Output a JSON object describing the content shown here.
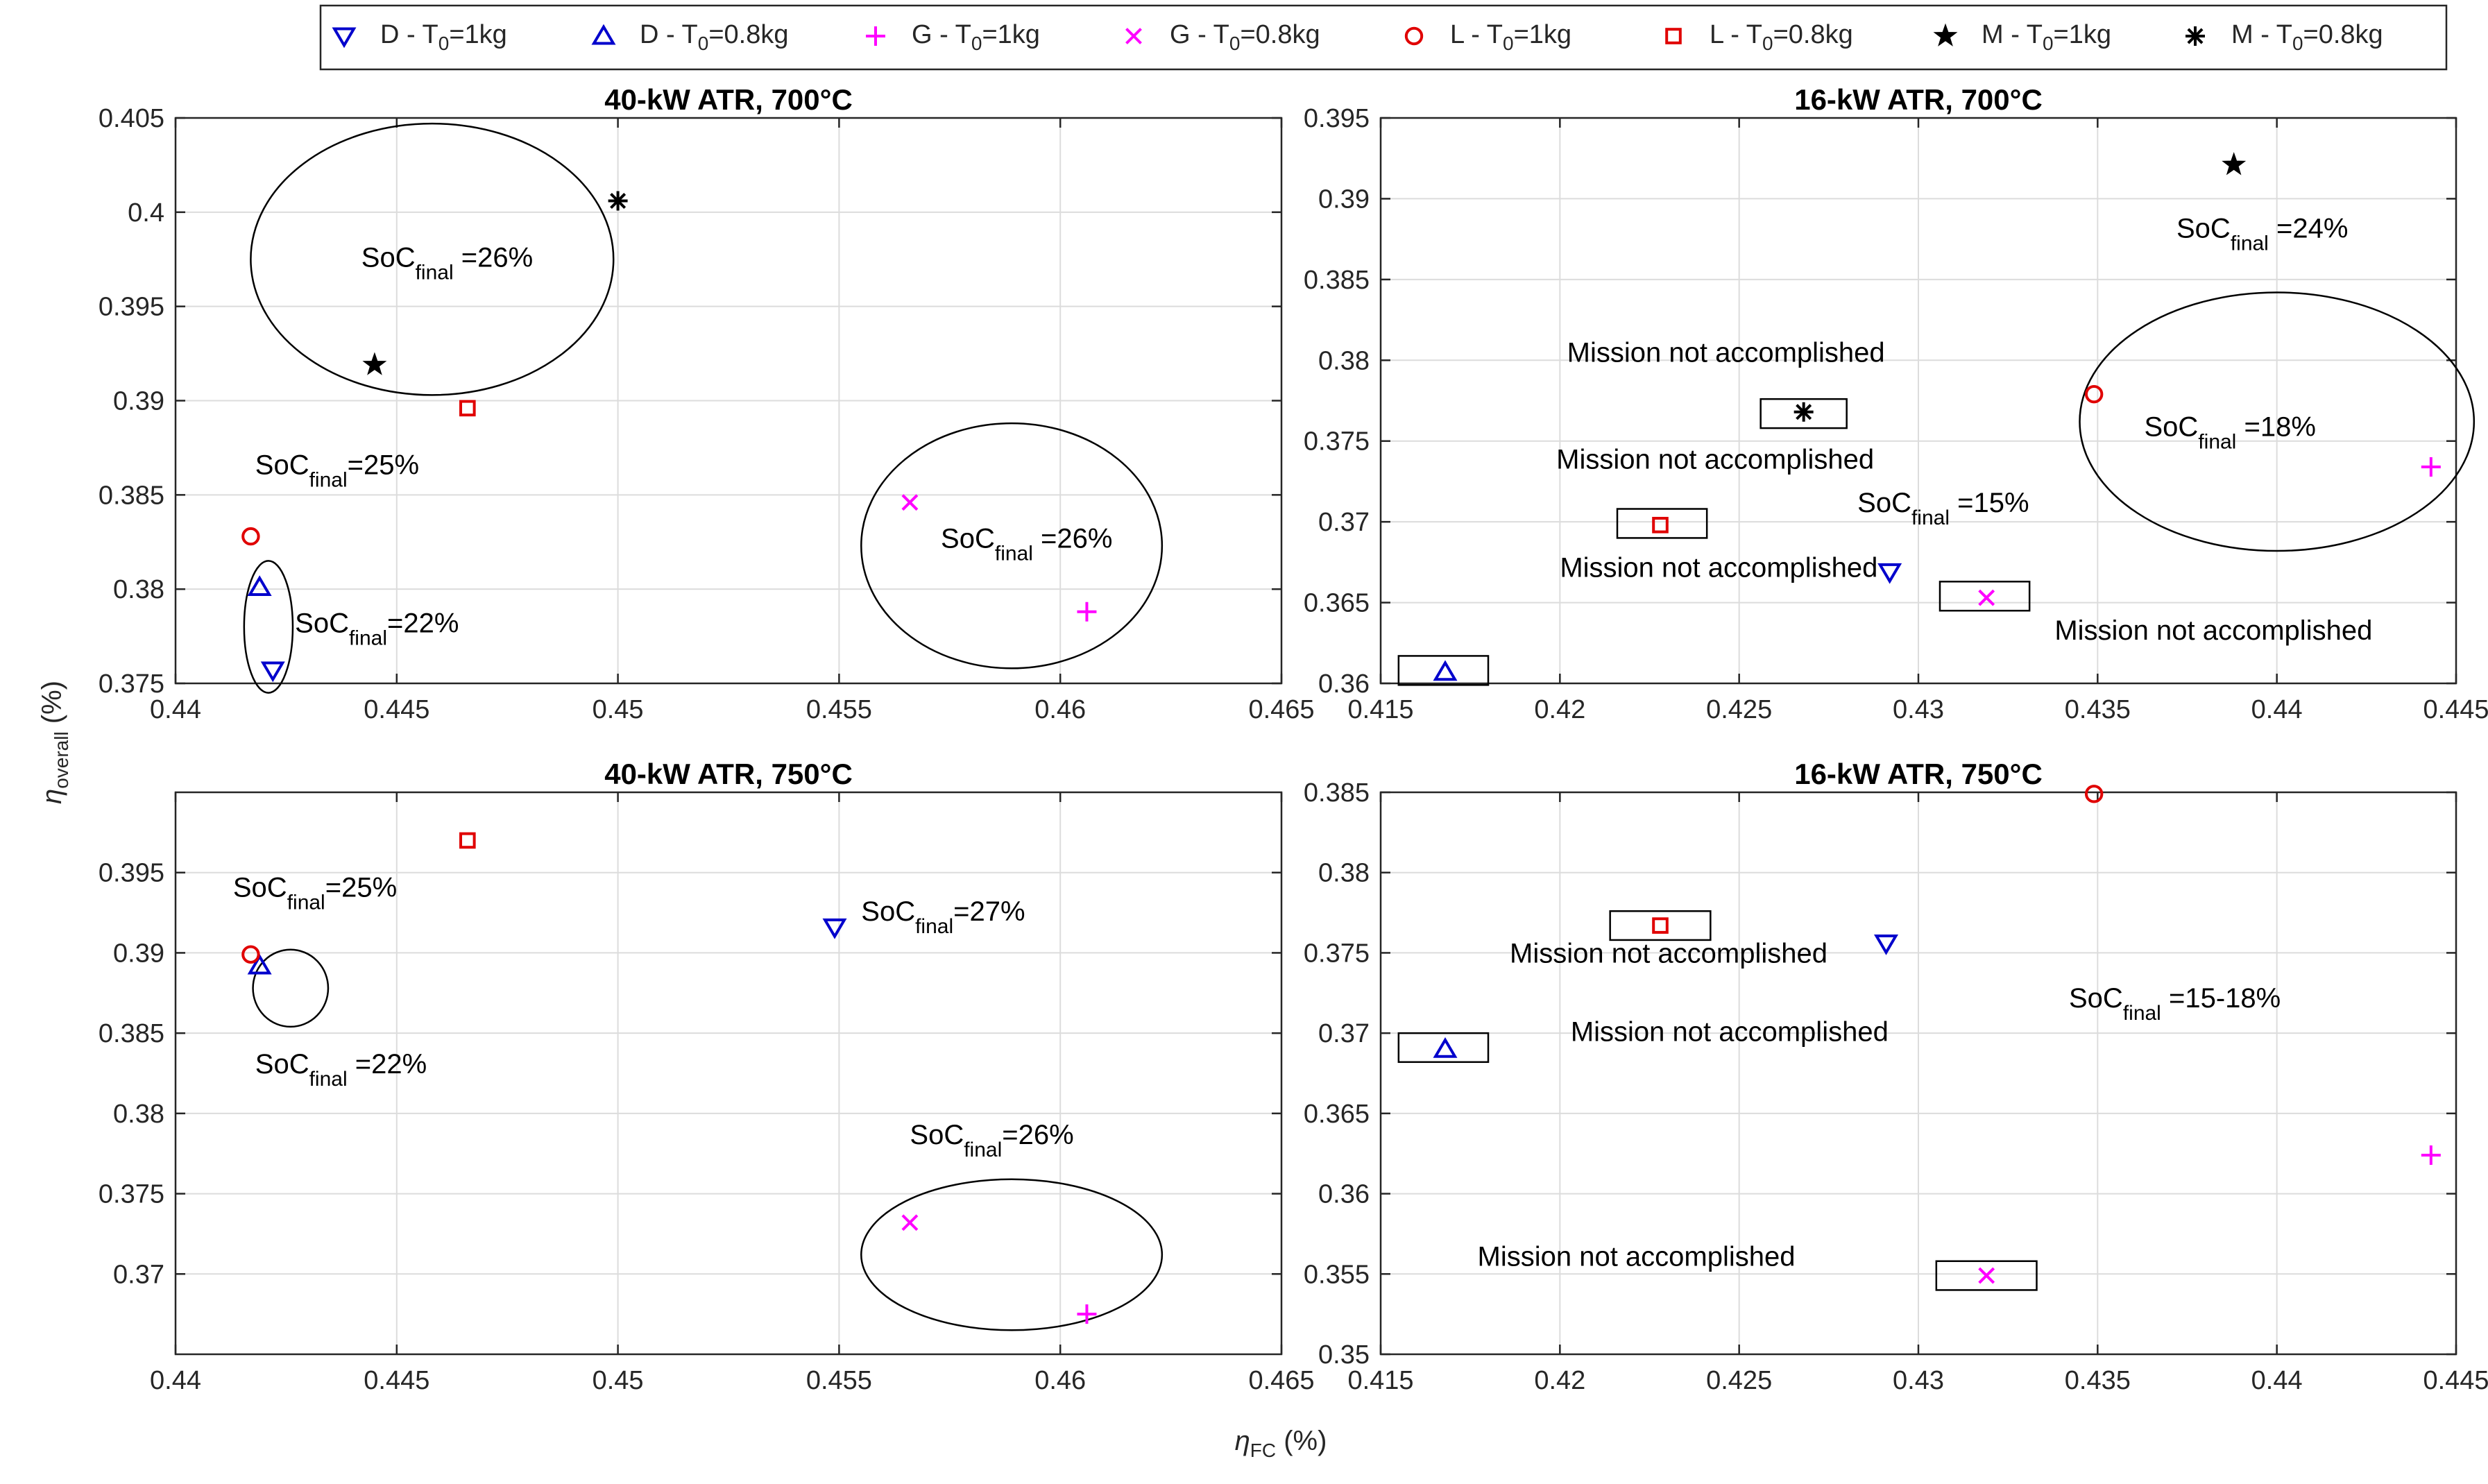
{
  "figure": {
    "xlabel": "η",
    "xlabel_sub": "FC",
    "xlabel_unit": " (%)",
    "ylabel": "η",
    "ylabel_sub": "overall",
    "ylabel_unit": " (%)"
  },
  "legend": [
    {
      "key": "D1",
      "marker": "triangle-down",
      "color": "#0000cc",
      "label": "D - T",
      "sub": "0",
      "suffix": "=1kg"
    },
    {
      "key": "D08",
      "marker": "triangle-up",
      "color": "#0000cc",
      "label": "D - T",
      "sub": "0",
      "suffix": "=0.8kg"
    },
    {
      "key": "G1",
      "marker": "plus",
      "color": "#ff00ff",
      "label": "G - T",
      "sub": "0",
      "suffix": "=1kg"
    },
    {
      "key": "G08",
      "marker": "x",
      "color": "#ff00ff",
      "label": "G - T",
      "sub": "0",
      "suffix": "=0.8kg"
    },
    {
      "key": "L1",
      "marker": "circle",
      "color": "#e00000",
      "label": "L - T",
      "sub": "0",
      "suffix": "=1kg"
    },
    {
      "key": "L08",
      "marker": "square",
      "color": "#e00000",
      "label": "L - T",
      "sub": "0",
      "suffix": "=0.8kg"
    },
    {
      "key": "M1",
      "marker": "pentagram",
      "color": "#000000",
      "label": "M - T",
      "sub": "0",
      "suffix": "=1kg"
    },
    {
      "key": "M08",
      "marker": "asterisk",
      "color": "#000000",
      "label": "M - T",
      "sub": "0",
      "suffix": "=0.8kg"
    }
  ],
  "chart_data": [
    {
      "type": "scatter",
      "title": "40-kW ATR, 700°C",
      "xlim": [
        0.44,
        0.465
      ],
      "ylim": [
        0.375,
        0.405
      ],
      "xticks": [
        "0.44",
        "0.445",
        "0.45",
        "0.455",
        "0.46",
        "0.465"
      ],
      "yticks": [
        "0.375",
        "0.38",
        "0.385",
        "0.39",
        "0.395",
        "0.4",
        "0.405"
      ],
      "xtickvals": [
        0.44,
        0.445,
        0.45,
        0.455,
        0.46,
        0.465
      ],
      "ytickvals": [
        0.375,
        0.38,
        0.385,
        0.39,
        0.395,
        0.4,
        0.405
      ],
      "points": [
        {
          "series": "D1",
          "x": 0.4422,
          "y": 0.3757
        },
        {
          "series": "D08",
          "x": 0.4419,
          "y": 0.3801
        },
        {
          "series": "G1",
          "x": 0.4606,
          "y": 0.3788
        },
        {
          "series": "G08",
          "x": 0.4566,
          "y": 0.3846
        },
        {
          "series": "L1",
          "x": 0.4417,
          "y": 0.3828
        },
        {
          "series": "L08",
          "x": 0.4466,
          "y": 0.3896
        },
        {
          "series": "M1",
          "x": 0.4445,
          "y": 0.3919
        },
        {
          "series": "M08",
          "x": 0.45,
          "y": 0.4006
        }
      ],
      "annotations": [
        {
          "pre": "SoC",
          "sub": "final",
          "post": " =26%",
          "x": 0.4442,
          "y": 0.3971
        },
        {
          "pre": "SoC",
          "sub": "final",
          "post": "=25%",
          "x": 0.4418,
          "y": 0.3861
        },
        {
          "pre": "SoC",
          "sub": "final",
          "post": " =26%",
          "x": 0.4573,
          "y": 0.3822
        },
        {
          "pre": "SoC",
          "sub": "final",
          "post": "=22%",
          "x": 0.4427,
          "y": 0.3777
        }
      ],
      "ellipses": [
        {
          "cx": 0.4458,
          "cy": 0.3975,
          "rx": 0.0041,
          "ry": 0.0072
        },
        {
          "cx": 0.4589,
          "cy": 0.3823,
          "rx": 0.0034,
          "ry": 0.0065
        },
        {
          "cx": 0.4421,
          "cy": 0.378,
          "rx": 0.00055,
          "ry": 0.0035
        }
      ],
      "boxes": []
    },
    {
      "type": "scatter",
      "title": "16-kW ATR, 700°C",
      "xlim": [
        0.415,
        0.445
      ],
      "ylim": [
        0.36,
        0.395
      ],
      "xticks": [
        "0.415",
        "0.42",
        "0.425",
        "0.43",
        "0.435",
        "0.44",
        "0.445"
      ],
      "yticks": [
        "0.36",
        "0.365",
        "0.37",
        "0.375",
        "0.38",
        "0.385",
        "0.39",
        "0.395"
      ],
      "xtickvals": [
        0.415,
        0.42,
        0.425,
        0.43,
        0.435,
        0.44,
        0.445
      ],
      "ytickvals": [
        0.36,
        0.365,
        0.37,
        0.375,
        0.38,
        0.385,
        0.39,
        0.395
      ],
      "points": [
        {
          "series": "D1",
          "x": 0.4292,
          "y": 0.3669
        },
        {
          "series": "D08",
          "x": 0.4168,
          "y": 0.3607
        },
        {
          "series": "G1",
          "x": 0.4443,
          "y": 0.3734
        },
        {
          "series": "G08",
          "x": 0.4319,
          "y": 0.3653
        },
        {
          "series": "L1",
          "x": 0.4349,
          "y": 0.3779
        },
        {
          "series": "L08",
          "x": 0.4228,
          "y": 0.3698
        },
        {
          "series": "M1",
          "x": 0.4388,
          "y": 0.3921
        },
        {
          "series": "M08",
          "x": 0.4268,
          "y": 0.3768
        }
      ],
      "annotations": [
        {
          "pre": "SoC",
          "sub": "final",
          "post": " =24%",
          "x": 0.4372,
          "y": 0.3876
        },
        {
          "pre": "SoC",
          "sub": "final",
          "post": " =18%",
          "x": 0.4363,
          "y": 0.3753
        },
        {
          "pre": "SoC",
          "sub": "final",
          "post": " =15%",
          "x": 0.4283,
          "y": 0.3706
        },
        {
          "text": "Mission not accomplished",
          "x": 0.4202,
          "y": 0.3799
        },
        {
          "text": "Mission not accomplished",
          "x": 0.4199,
          "y": 0.3733
        },
        {
          "text": "Mission not accomplished",
          "x": 0.42,
          "y": 0.3666
        },
        {
          "text": "Mission not accomplished",
          "x": 0.4338,
          "y": 0.3627
        }
      ],
      "ellipses": [
        {
          "cx": 0.44,
          "cy": 0.3762,
          "rx": 0.0055,
          "ry": 0.008
        }
      ],
      "boxes": [
        {
          "x0": 0.4256,
          "x1": 0.428,
          "y0": 0.3758,
          "y1": 0.3776
        },
        {
          "x0": 0.4216,
          "x1": 0.4241,
          "y0": 0.369,
          "y1": 0.3708
        },
        {
          "x0": 0.4306,
          "x1": 0.4331,
          "y0": 0.3645,
          "y1": 0.3663
        },
        {
          "x0": 0.4155,
          "x1": 0.418,
          "y0": 0.3599,
          "y1": 0.3617
        }
      ]
    },
    {
      "type": "scatter",
      "title": "40-kW ATR, 750°C",
      "xlim": [
        0.44,
        0.465
      ],
      "ylim": [
        0.365,
        0.4
      ],
      "xticks": [
        "0.44",
        "0.445",
        "0.45",
        "0.455",
        "0.46",
        "0.465"
      ],
      "yticks": [
        "0.37",
        "0.375",
        "0.38",
        "0.385",
        "0.39",
        "0.395"
      ],
      "xtickvals": [
        0.44,
        0.445,
        0.45,
        0.455,
        0.46,
        0.465
      ],
      "ytickvals": [
        0.37,
        0.375,
        0.38,
        0.385,
        0.39,
        0.395
      ],
      "points": [
        {
          "series": "D1",
          "x": 0.4549,
          "y": 0.3916
        },
        {
          "series": "D08",
          "x": 0.4419,
          "y": 0.3892
        },
        {
          "series": "G1",
          "x": 0.4606,
          "y": 0.3675
        },
        {
          "series": "G08",
          "x": 0.4566,
          "y": 0.3732
        },
        {
          "series": "L1",
          "x": 0.4417,
          "y": 0.3899
        },
        {
          "series": "L08",
          "x": 0.4466,
          "y": 0.397
        }
      ],
      "annotations": [
        {
          "pre": "SoC",
          "sub": "final",
          "post": "=25%",
          "x": 0.4413,
          "y": 0.3935
        },
        {
          "pre": "SoC",
          "sub": "final",
          "post": "=27%",
          "x": 0.4555,
          "y": 0.392
        },
        {
          "pre": "SoC",
          "sub": "final",
          "post": " =22%",
          "x": 0.4418,
          "y": 0.3825
        },
        {
          "pre": "SoC",
          "sub": "final",
          "post": "=26%",
          "x": 0.4566,
          "y": 0.3781
        }
      ],
      "ellipses": [
        {
          "cx": 0.4426,
          "cy": 0.3878,
          "rx": 0.00085,
          "ry": 0.0024
        },
        {
          "cx": 0.4589,
          "cy": 0.3712,
          "rx": 0.0034,
          "ry": 0.0047
        }
      ],
      "boxes": []
    },
    {
      "type": "scatter",
      "title": "16-kW ATR, 750°C",
      "xlim": [
        0.415,
        0.445
      ],
      "ylim": [
        0.35,
        0.385
      ],
      "xticks": [
        "0.415",
        "0.42",
        "0.425",
        "0.43",
        "0.435",
        "0.44",
        "0.445"
      ],
      "yticks": [
        "0.35",
        "0.355",
        "0.36",
        "0.365",
        "0.37",
        "0.375",
        "0.38",
        "0.385"
      ],
      "xtickvals": [
        0.415,
        0.42,
        0.425,
        0.43,
        0.435,
        0.44,
        0.445
      ],
      "ytickvals": [
        0.35,
        0.355,
        0.36,
        0.365,
        0.37,
        0.375,
        0.38,
        0.385
      ],
      "points": [
        {
          "series": "D1",
          "x": 0.4291,
          "y": 0.3756
        },
        {
          "series": "D08",
          "x": 0.4168,
          "y": 0.369
        },
        {
          "series": "G1",
          "x": 0.4443,
          "y": 0.3624
        },
        {
          "series": "G08",
          "x": 0.4319,
          "y": 0.3549
        },
        {
          "series": "L1",
          "x": 0.4349,
          "y": 0.3849
        },
        {
          "series": "L08",
          "x": 0.4228,
          "y": 0.3767
        }
      ],
      "annotations": [
        {
          "text": "Mission not accomplished",
          "x": 0.4186,
          "y": 0.3744
        },
        {
          "text": "Mission not accomplished",
          "x": 0.4203,
          "y": 0.3695
        },
        {
          "pre": "SoC",
          "sub": "final",
          "post": " =15-18%",
          "x": 0.4342,
          "y": 0.3716
        },
        {
          "text": "Mission not accomplished",
          "x": 0.4177,
          "y": 0.3555
        }
      ],
      "ellipses": [],
      "boxes": [
        {
          "x0": 0.4214,
          "x1": 0.4242,
          "y0": 0.3758,
          "y1": 0.3776
        },
        {
          "x0": 0.4155,
          "x1": 0.418,
          "y0": 0.3682,
          "y1": 0.37
        },
        {
          "x0": 0.4305,
          "x1": 0.4333,
          "y0": 0.354,
          "y1": 0.3558
        }
      ]
    }
  ]
}
